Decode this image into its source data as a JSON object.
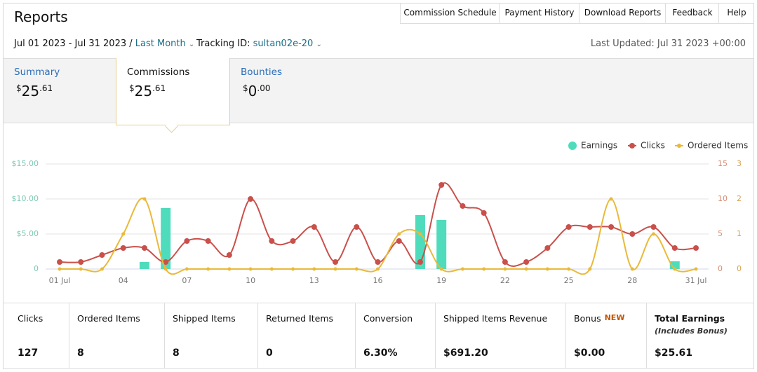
{
  "header": {
    "title": "Reports",
    "nav": [
      "Commission Schedule",
      "Payment History",
      "Download Reports",
      "Feedback",
      "Help"
    ]
  },
  "filters": {
    "date_range": "Jul 01 2023 - Jul 31 2023 /",
    "period": "Last Month",
    "tracking_label": "Tracking ID:",
    "tracking_id": "sultan02e-20",
    "last_updated": "Last Updated: Jul 31 2023 +00:00"
  },
  "tabs": [
    {
      "label": "Summary",
      "symbol": "$",
      "whole": "25",
      "cents": ".61"
    },
    {
      "label": "Commissions",
      "symbol": "$",
      "whole": "25",
      "cents": ".61"
    },
    {
      "label": "Bounties",
      "symbol": "$",
      "whole": "0",
      "cents": ".00"
    }
  ],
  "active_tab": 1,
  "chart_data": {
    "type": "combo",
    "legend": "top-right",
    "grid": true,
    "categories": [
      "01 Jul",
      null,
      null,
      "04",
      null,
      null,
      "07",
      null,
      null,
      "10",
      null,
      null,
      "13",
      null,
      null,
      "16",
      null,
      null,
      "19",
      null,
      null,
      "22",
      null,
      null,
      "25",
      null,
      null,
      "28",
      null,
      null,
      "31 Jul"
    ],
    "ylim": [
      0,
      15
    ],
    "yticks": [
      0,
      {
        "value": 5,
        "label": "$5.00"
      },
      {
        "value": 10,
        "label": "$10.00"
      },
      {
        "value": 15,
        "label": "$15.00"
      }
    ],
    "y2lim": [
      0,
      15
    ],
    "y2ticks": [
      0,
      5,
      10,
      15
    ],
    "y3lim": [
      0,
      3
    ],
    "y3ticks": [
      0,
      1,
      2,
      3
    ],
    "series": [
      {
        "name": "Earnings",
        "type": "bar",
        "color": "#4fdcbc",
        "values": [
          0,
          0,
          0,
          0,
          1.0,
          8.7,
          0,
          0,
          0,
          0,
          0,
          0,
          0,
          0,
          0,
          0,
          0,
          7.7,
          7.0,
          0,
          0,
          0,
          0,
          0,
          0,
          0,
          0,
          0,
          0,
          1.1,
          0
        ]
      },
      {
        "name": "Clicks",
        "type": "line",
        "axis": "y2",
        "color": "#c9504b",
        "values": [
          1,
          1,
          2,
          3,
          3,
          1,
          4,
          4,
          2,
          10,
          4,
          4,
          6,
          1,
          6,
          1,
          4,
          1,
          12,
          9,
          8,
          1,
          1,
          3,
          6,
          6,
          6,
          5,
          6,
          3,
          3
        ]
      },
      {
        "name": "Ordered Items",
        "type": "line",
        "axis": "y3",
        "color": "#e9b93a",
        "values": [
          0,
          0,
          0,
          1,
          2,
          0,
          0,
          0,
          0,
          0,
          0,
          0,
          0,
          0,
          0,
          0,
          1,
          1,
          0,
          0,
          0,
          0,
          0,
          0,
          0,
          0,
          2,
          0,
          1,
          0,
          0
        ]
      }
    ]
  },
  "stats": [
    {
      "label": "Clicks",
      "value": "127"
    },
    {
      "label": "Ordered Items",
      "value": "8"
    },
    {
      "label": "Shipped Items",
      "value": "8"
    },
    {
      "label": "Returned Items",
      "value": "0"
    },
    {
      "label": "Conversion",
      "value": "6.30%"
    },
    {
      "label": "Shipped Items Revenue",
      "value": "$691.20"
    },
    {
      "label": "Bonus",
      "badge": "NEW",
      "value": "$0.00"
    },
    {
      "label": "Total Earnings",
      "note": "(Includes Bonus)",
      "value": "$25.61"
    }
  ]
}
